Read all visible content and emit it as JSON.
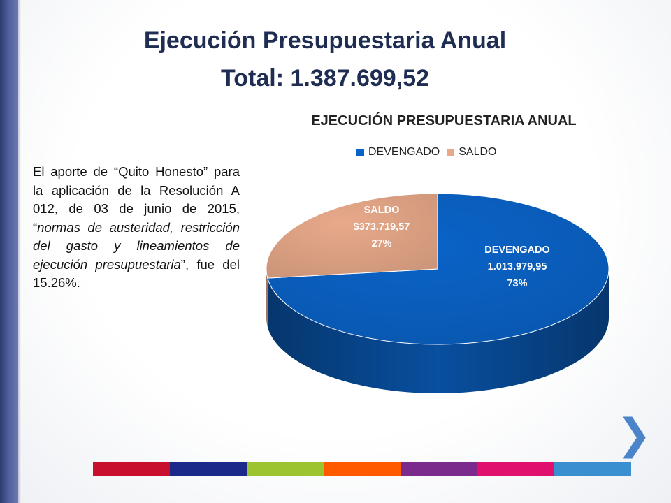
{
  "slide": {
    "title_line1": "Ejecución Presupuestaria Anual",
    "title_line2": "Total: 1.387.699,52",
    "body_parts": [
      {
        "text": "El aporte de “Quito Honesto” para la aplicación de la Resolución A 012, de 03 de junio de 2015, “",
        "italic": false
      },
      {
        "text": "normas de austeridad, restricción del gasto y lineamientos de ejecución presupuestaria",
        "italic": true
      },
      {
        "text": "”, fue del 15.26%.",
        "italic": false
      }
    ],
    "next_symbol": "❯",
    "stripe_colors": [
      "#c8102e",
      "#1b2a8a",
      "#9bc430",
      "#ff5a00",
      "#7a2b8c",
      "#e0106e",
      "#3a8fd0"
    ]
  },
  "chart_data": {
    "type": "pie",
    "title": "EJECUCIÓN PRESUPUESTARIA ANUAL",
    "legend_position": "top",
    "categories": [
      "DEVENGADO",
      "SALDO"
    ],
    "values": [
      1013979.95,
      373719.57
    ],
    "percentages": [
      73,
      27
    ],
    "value_labels": [
      "1.013.979,95",
      "$373.719,57"
    ],
    "percent_labels": [
      "73%",
      "27%"
    ],
    "colors": [
      "#0a63c7",
      "#e8a98a"
    ],
    "style": "3d"
  }
}
